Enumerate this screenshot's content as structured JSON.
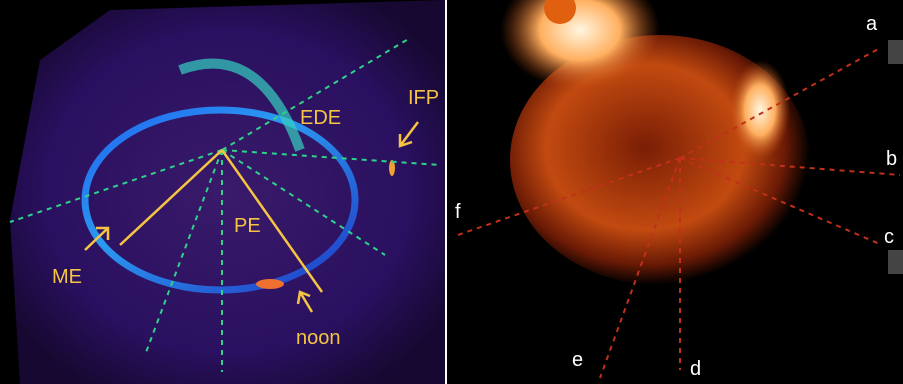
{
  "left_panel": {
    "labels": [
      "EDE",
      "IFP",
      "PE",
      "ME",
      "noon"
    ]
  },
  "right_panel": {
    "labels": [
      "a",
      "b",
      "c",
      "d",
      "e",
      "f"
    ]
  }
}
